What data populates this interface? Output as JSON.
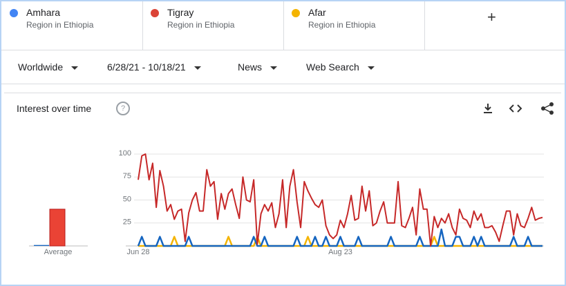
{
  "terms": [
    {
      "name": "Amhara",
      "subtitle": "Region in Ethiopia"
    },
    {
      "name": "Tigray",
      "subtitle": "Region in Ethiopia"
    },
    {
      "name": "Afar",
      "subtitle": "Region in Ethiopia"
    }
  ],
  "filters": [
    "Worldwide",
    "6/28/21 - 10/18/21",
    "News",
    "Web Search"
  ],
  "card_title": "Interest over time",
  "chart_data": {
    "type": "line",
    "categories": [
      "Jun 28",
      null,
      null,
      null,
      null,
      null,
      null,
      null,
      null,
      null,
      null,
      null,
      null,
      null,
      null,
      null,
      null,
      null,
      null,
      null,
      null,
      null,
      null,
      null,
      null,
      null,
      null,
      null,
      null,
      null,
      null,
      null,
      null,
      null,
      null,
      null,
      null,
      null,
      null,
      null,
      null,
      null,
      null,
      null,
      null,
      null,
      null,
      null,
      null,
      null,
      null,
      null,
      null,
      null,
      null,
      null,
      "Aug 23",
      null,
      null,
      null,
      null,
      null,
      null,
      null,
      null,
      null,
      null,
      null,
      null,
      null,
      null,
      null,
      null,
      null,
      null,
      null,
      null,
      null,
      null,
      null,
      null,
      null,
      null,
      null,
      null,
      null,
      null,
      null,
      null,
      null,
      null,
      null,
      null,
      null,
      null,
      null,
      null,
      null,
      null,
      null,
      null,
      null,
      null,
      null,
      null,
      null,
      null,
      null,
      null,
      null,
      null,
      null,
      null
    ],
    "series": [
      {
        "name": "Amhara",
        "color": "#1565c0",
        "values": [
          0,
          10,
          0,
          0,
          0,
          0,
          10,
          0,
          0,
          0,
          0,
          0,
          0,
          0,
          10,
          0,
          0,
          0,
          0,
          0,
          0,
          0,
          0,
          0,
          0,
          0,
          0,
          0,
          0,
          0,
          0,
          0,
          10,
          0,
          0,
          10,
          0,
          0,
          0,
          0,
          0,
          0,
          0,
          0,
          10,
          0,
          0,
          0,
          0,
          10,
          0,
          0,
          10,
          0,
          0,
          0,
          10,
          0,
          0,
          0,
          0,
          10,
          0,
          0,
          0,
          0,
          0,
          0,
          0,
          0,
          10,
          0,
          0,
          0,
          0,
          0,
          0,
          0,
          10,
          0,
          0,
          0,
          0,
          0,
          18,
          0,
          0,
          0,
          10,
          10,
          0,
          0,
          0,
          10,
          0,
          10,
          0,
          0,
          0,
          0,
          0,
          0,
          0,
          0,
          10,
          0,
          0,
          0,
          10,
          0,
          0,
          0,
          0
        ]
      },
      {
        "name": "Tigray",
        "color": "#c62828",
        "values": [
          72,
          98,
          100,
          72,
          90,
          42,
          82,
          65,
          38,
          45,
          29,
          38,
          40,
          5,
          36,
          50,
          58,
          38,
          38,
          83,
          65,
          70,
          29,
          57,
          40,
          57,
          62,
          45,
          30,
          75,
          50,
          48,
          72,
          2,
          35,
          45,
          38,
          47,
          20,
          35,
          72,
          20,
          65,
          83,
          48,
          20,
          70,
          60,
          52,
          45,
          42,
          50,
          22,
          12,
          8,
          12,
          28,
          20,
          35,
          55,
          28,
          30,
          65,
          38,
          60,
          22,
          25,
          38,
          48,
          25,
          25,
          25,
          70,
          22,
          20,
          30,
          42,
          12,
          62,
          40,
          40,
          0,
          32,
          20,
          30,
          25,
          35,
          20,
          12,
          40,
          30,
          28,
          20,
          38,
          28,
          35,
          20,
          20,
          22,
          15,
          5,
          22,
          38,
          38,
          12,
          35,
          22,
          20,
          30,
          42,
          28,
          30,
          31
        ]
      },
      {
        "name": "Afar",
        "color": "#f4b400",
        "values": [
          0,
          0,
          0,
          0,
          0,
          0,
          0,
          0,
          0,
          0,
          10,
          0,
          0,
          0,
          0,
          0,
          0,
          0,
          0,
          0,
          0,
          0,
          0,
          0,
          0,
          10,
          0,
          0,
          0,
          0,
          0,
          0,
          0,
          10,
          0,
          0,
          0,
          0,
          0,
          0,
          0,
          0,
          0,
          0,
          0,
          0,
          0,
          10,
          0,
          0,
          0,
          0,
          0,
          0,
          0,
          0,
          0,
          0,
          0,
          0,
          0,
          0,
          0,
          0,
          0,
          0,
          0,
          0,
          0,
          0,
          0,
          0,
          0,
          0,
          0,
          0,
          0,
          0,
          0,
          0,
          0,
          0,
          10,
          0,
          0,
          0,
          0,
          0,
          0,
          0,
          0,
          0,
          0,
          0,
          0,
          0,
          0,
          0,
          0,
          0,
          0,
          0,
          0,
          0,
          0,
          0,
          0,
          0,
          0,
          0,
          0,
          0,
          0
        ]
      }
    ],
    "average": {
      "label": "Average",
      "values": [
        1,
        40,
        0
      ]
    },
    "ylim": [
      0,
      100
    ],
    "yticks": [
      25,
      50,
      75,
      100
    ],
    "grid": true
  }
}
